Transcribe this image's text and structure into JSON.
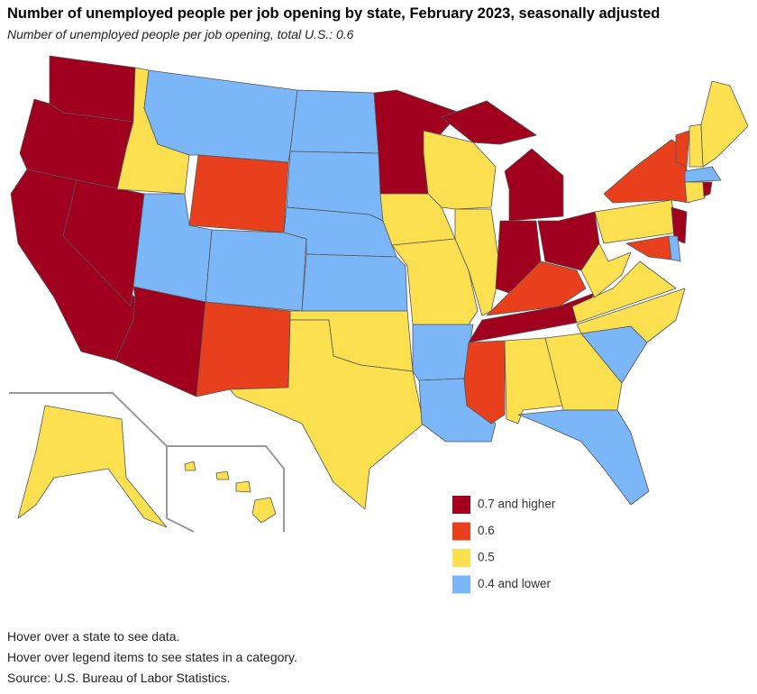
{
  "header": {
    "title": "Number of unemployed people per job opening by state, February 2023, seasonally adjusted",
    "subtitle": "Number of unemployed people per job opening, total U.S.: 0.6"
  },
  "map": {
    "legend": [
      {
        "label": "0.7 and higher",
        "color": "#a0001e"
      },
      {
        "label": "0.6",
        "color": "#e8401c"
      },
      {
        "label": "0.5",
        "color": "#fde04f"
      },
      {
        "label": "0.4 and lower",
        "color": "#7ab6f8"
      }
    ],
    "states": [
      0,
      0,
      0,
      0,
      2,
      3,
      1,
      3,
      0,
      3,
      1,
      3,
      3,
      3,
      3,
      2,
      2,
      0,
      2,
      2,
      3,
      3,
      2,
      2,
      0,
      0,
      0,
      1,
      0,
      1,
      2,
      2,
      3,
      3,
      2,
      2,
      2,
      2,
      1,
      0,
      1,
      3,
      1,
      2,
      2,
      3,
      2,
      0,
      2,
      2,
      0
    ]
  },
  "notes": [
    "Hover over a state to see data.",
    "Hover over legend items to see states in a category.",
    "Source: U.S. Bureau of Labor Statistics."
  ]
}
